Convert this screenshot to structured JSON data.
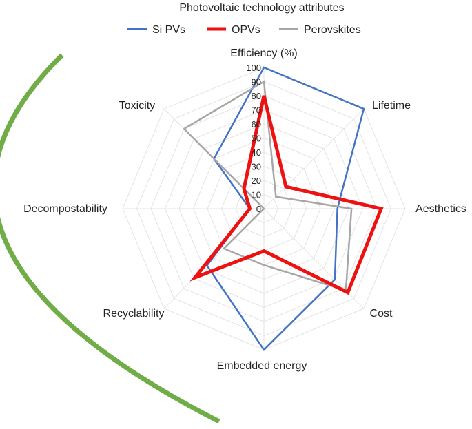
{
  "chart_data": {
    "type": "radar",
    "title": "Photovoltaic technology attributes",
    "categories": [
      "Efficiency (%)",
      "Lifetime",
      "Aesthetics",
      "Cost",
      "Embedded energy",
      "Recyclability",
      "Decompostability",
      "Toxicity"
    ],
    "ticks": [
      0,
      10,
      20,
      30,
      40,
      50,
      60,
      70,
      80,
      90,
      100
    ],
    "range": [
      0,
      100
    ],
    "legend_position": "top",
    "series": [
      {
        "name": "Si PVs",
        "color": "#4472c4",
        "values": [
          100,
          100,
          52,
          71,
          100,
          57,
          10,
          50
        ]
      },
      {
        "name": "OPVs",
        "color": "#ee1111",
        "values": [
          80,
          22,
          83,
          84,
          30,
          69,
          10,
          20
        ]
      },
      {
        "name": "Perovskites",
        "color": "#a6a6a6",
        "values": [
          90,
          12,
          62,
          82,
          40,
          40,
          0,
          80
        ]
      }
    ],
    "decoration_color": "#70ad47"
  }
}
